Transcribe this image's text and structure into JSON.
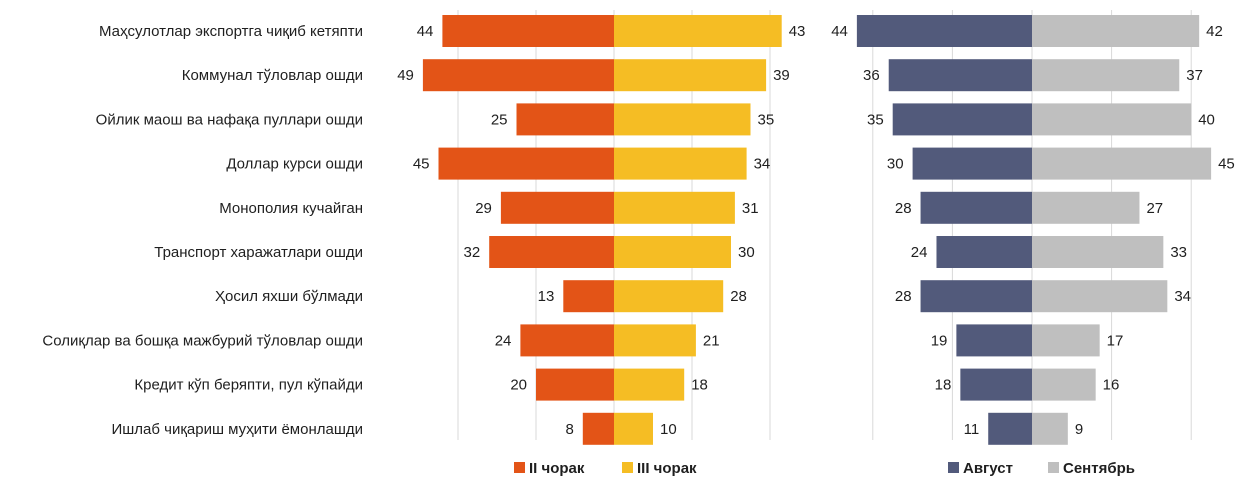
{
  "chart_data": [
    {
      "type": "bar",
      "orientation": "horizontal-butterfly",
      "categories": [
        "Маҳсулотлар экспортга чиқиб кетяпти",
        "Коммунал тўловлар ошди",
        "Ойлик маош ва нафақа пуллари ошди",
        "Доллар курси ошди",
        "Монополия кучайган",
        "Транспорт харажатлари ошди",
        "Ҳосил яхши бўлмади",
        "Солиқлар ва бошқа мажбурий тўловлар ошди",
        "Кредит кўп беряпти, пул кўпайди",
        "Ишлаб чиқариш муҳити ёмонлашди"
      ],
      "series": [
        {
          "name": "II чорак",
          "side": "left",
          "color": "#e35417",
          "values": [
            44,
            49,
            25,
            45,
            29,
            32,
            13,
            24,
            20,
            8
          ]
        },
        {
          "name": "III чорак",
          "side": "right",
          "color": "#f5bd24",
          "values": [
            43,
            39,
            35,
            34,
            31,
            30,
            28,
            21,
            18,
            10
          ]
        }
      ],
      "grid": true,
      "legend_position": "bottom"
    },
    {
      "type": "bar",
      "orientation": "horizontal-butterfly",
      "categories": [
        "Маҳсулотлар экспортга чиқиб кетяпти",
        "Коммунал тўловлар ошди",
        "Ойлик маош ва нафақа пуллари ошди",
        "Доллар курси ошди",
        "Монополия кучайган",
        "Транспорт харажатлари ошди",
        "Ҳосил яхши бўлмади",
        "Солиқлар ва бошқа мажбурий тўловлар ошди",
        "Кредит кўп беряпти, пул кўпайди",
        "Ишлаб чиқариш муҳити ёмонлашди"
      ],
      "series": [
        {
          "name": "Август",
          "side": "left",
          "color": "#525a7b",
          "values": [
            44,
            36,
            35,
            30,
            28,
            24,
            28,
            19,
            18,
            11
          ]
        },
        {
          "name": "Сентябрь",
          "side": "right",
          "color": "#bfbfbf",
          "values": [
            42,
            37,
            40,
            45,
            27,
            33,
            34,
            17,
            16,
            9
          ]
        }
      ],
      "grid": true,
      "legend_position": "bottom"
    }
  ]
}
